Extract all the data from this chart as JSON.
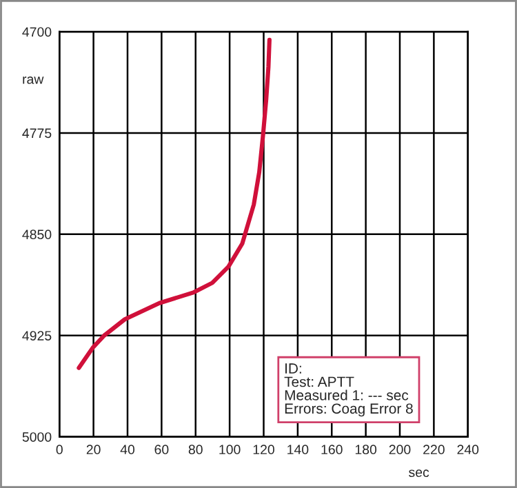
{
  "chart_data": {
    "type": "line",
    "xlabel": "sec",
    "ylabel": "raw",
    "annotations": [
      "ID:\nTest: APTT\nMeasured 1: --- sec\nErrors: Coag Error 8"
    ],
    "series": [
      {
        "color": "#d0103a",
        "x": [
          11.4,
          19.6,
          26.3,
          38.4,
          58.7,
          79,
          89.8,
          99.3,
          107.4,
          114.2,
          117.4,
          119.6,
          121.5,
          122.8,
          123.4
        ],
        "values": [
          4949,
          4934,
          4925,
          4913,
          4901,
          4893,
          4886,
          4874,
          4857,
          4828,
          4804,
          4777,
          4750,
          4726,
          4706
        ]
      }
    ],
    "xlim": [
      0,
      240
    ],
    "xticks": [
      0,
      20,
      40,
      60,
      80,
      100,
      120,
      140,
      160,
      180,
      200,
      220,
      240
    ],
    "ylim": [
      5000,
      4700
    ],
    "yticks": [
      4700,
      4775,
      4850,
      4925,
      5000
    ],
    "grid": true,
    "line_style": "solid"
  }
}
